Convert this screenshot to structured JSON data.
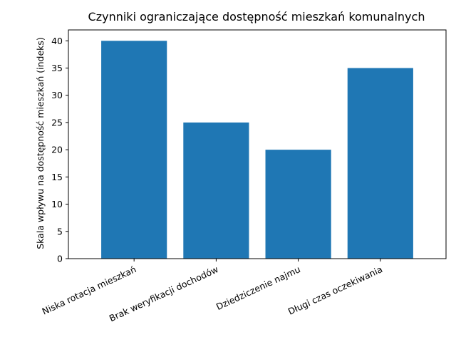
{
  "chart_data": {
    "type": "bar",
    "title": "Czynniki ograniczające dostępność mieszkań komunalnych",
    "xlabel": "",
    "ylabel": "Skala wpływu na dostępność mieszkań (indeks)",
    "categories": [
      "Niska rotacja mieszkań",
      "Brak weryfikacji dochodów",
      "Dziedziczenie najmu",
      "Długi czas oczekiwania"
    ],
    "values": [
      40,
      25,
      20,
      35
    ],
    "ylim": [
      0,
      42
    ],
    "yticks": [
      0,
      5,
      10,
      15,
      20,
      25,
      30,
      35,
      40
    ],
    "bar_color": "#1f77b4",
    "grid": false,
    "legend": "none"
  }
}
